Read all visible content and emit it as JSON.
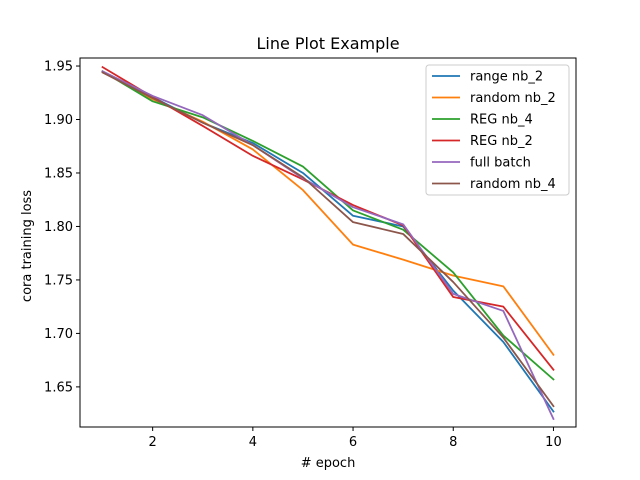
{
  "chart_data": {
    "type": "line",
    "title": "Line Plot Example",
    "xlabel": "# epoch",
    "ylabel": "cora training loss",
    "xlim": [
      0.55,
      10.45
    ],
    "ylim": [
      1.6125,
      1.9575
    ],
    "xticks": [
      2,
      4,
      6,
      8,
      10
    ],
    "yticks": [
      1.65,
      1.7,
      1.75,
      1.8,
      1.85,
      1.9,
      1.95
    ],
    "ytick_labels": [
      "1.65",
      "1.70",
      "1.75",
      "1.80",
      "1.85",
      "1.90",
      "1.95"
    ],
    "grid": false,
    "legend_position": "top-right",
    "x": [
      1,
      2,
      3,
      4,
      5,
      6,
      7,
      8,
      9,
      10
    ],
    "series": [
      {
        "name": "range nb_2",
        "color": "#1f77b4",
        "values": [
          1.945,
          1.921,
          1.897,
          1.878,
          1.85,
          1.81,
          1.8,
          1.74,
          1.692,
          1.627
        ]
      },
      {
        "name": "random nb_2",
        "color": "#ff7f0e",
        "values": [
          1.945,
          1.919,
          1.898,
          1.872,
          1.834,
          1.783,
          1.769,
          1.754,
          1.744,
          1.68
        ]
      },
      {
        "name": "REG nb_4",
        "color": "#2ca02c",
        "values": [
          1.945,
          1.917,
          1.902,
          1.88,
          1.856,
          1.815,
          1.797,
          1.757,
          1.698,
          1.657
        ]
      },
      {
        "name": "REG nb_2",
        "color": "#d62728",
        "values": [
          1.949,
          1.921,
          1.894,
          1.866,
          1.844,
          1.82,
          1.801,
          1.734,
          1.725,
          1.666
        ]
      },
      {
        "name": "full batch",
        "color": "#9467bd",
        "values": [
          1.945,
          1.922,
          1.904,
          1.876,
          1.845,
          1.818,
          1.802,
          1.737,
          1.721,
          1.62
        ]
      },
      {
        "name": "random nb_4",
        "color": "#8c564b",
        "values": [
          1.944,
          1.92,
          1.897,
          1.876,
          1.846,
          1.804,
          1.793,
          1.748,
          1.696,
          1.632
        ]
      }
    ]
  }
}
